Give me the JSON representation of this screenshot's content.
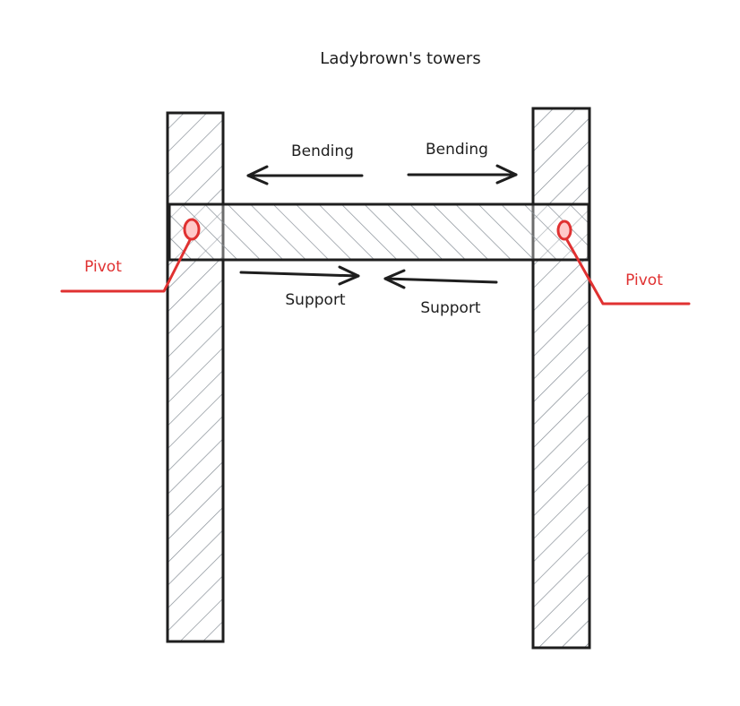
{
  "title": "Ladybrown's towers",
  "labels": {
    "bending_left": "Bending",
    "bending_right": "Bending",
    "support_left": "Support",
    "support_right": "Support",
    "pivot_left": "Pivot",
    "pivot_right": "Pivot"
  },
  "colors": {
    "stroke": "#1e1e1e",
    "hatch": "#868e96",
    "pivot": "#e03131",
    "pivot_fill": "#ffc9c9"
  }
}
